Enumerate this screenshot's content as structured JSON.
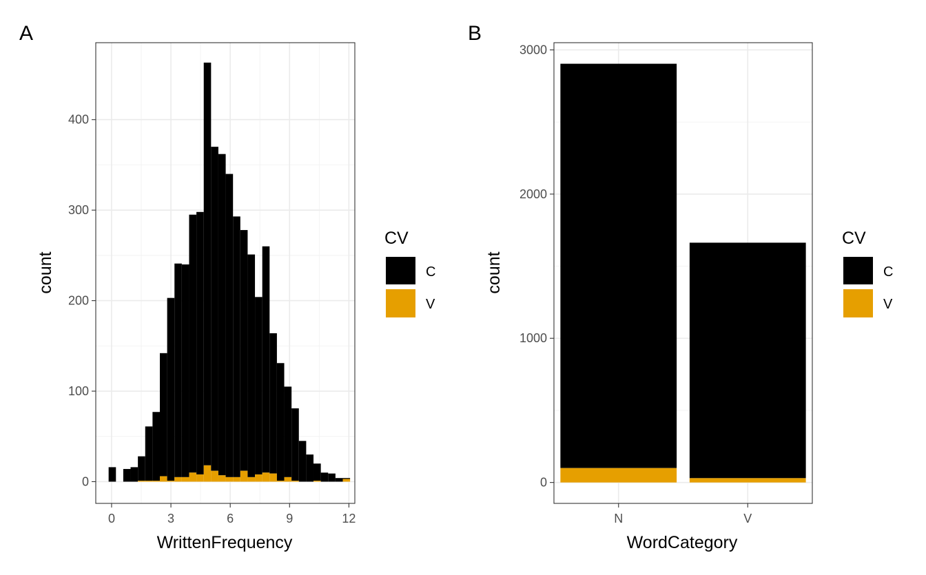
{
  "chart_data": [
    {
      "panel": "A",
      "type": "bar",
      "subtype": "stacked-histogram",
      "xlabel": "WrittenFrequency",
      "ylabel": "count",
      "xlim": [
        -0.8,
        12.3
      ],
      "ylim": [
        -24,
        485
      ],
      "xticks": [
        0,
        3,
        6,
        9,
        12
      ],
      "yticks": [
        0,
        100,
        200,
        300,
        400
      ],
      "grid": true,
      "legend": {
        "title": "CV",
        "position": "right",
        "entries": [
          {
            "label": "C",
            "color": "#000000"
          },
          {
            "label": "V",
            "color": "#E69F00"
          }
        ]
      },
      "bin_width": 0.37,
      "x_start": -0.15,
      "series": [
        {
          "name": "C",
          "color": "#000000",
          "values": [
            16,
            0,
            14,
            16,
            27,
            60,
            76,
            136,
            202,
            236,
            235,
            285,
            290,
            445,
            358,
            355,
            335,
            288,
            266,
            246,
            196,
            250,
            155,
            130,
            100,
            80,
            45,
            30,
            19,
            10,
            9,
            4,
            1
          ]
        },
        {
          "name": "V",
          "color": "#E69F00",
          "values": [
            0,
            0,
            0,
            0,
            1,
            1,
            1,
            6,
            1,
            5,
            5,
            10,
            8,
            18,
            12,
            7,
            5,
            5,
            12,
            5,
            8,
            10,
            9,
            1,
            5,
            1,
            0,
            0,
            1,
            0,
            0,
            0,
            3
          ]
        }
      ]
    },
    {
      "panel": "B",
      "type": "bar",
      "subtype": "stacked",
      "xlabel": "WordCategory",
      "ylabel": "count",
      "categories": [
        "N",
        "V"
      ],
      "ylim": [
        -145,
        3050
      ],
      "yticks": [
        0,
        1000,
        2000,
        3000
      ],
      "grid": true,
      "legend": {
        "title": "CV",
        "position": "right",
        "entries": [
          {
            "label": "C",
            "color": "#000000"
          },
          {
            "label": "V",
            "color": "#E69F00"
          }
        ]
      },
      "series": [
        {
          "name": "C",
          "color": "#000000",
          "values": [
            2804,
            1633
          ]
        },
        {
          "name": "V",
          "color": "#E69F00",
          "values": [
            100,
            30
          ]
        }
      ]
    }
  ]
}
